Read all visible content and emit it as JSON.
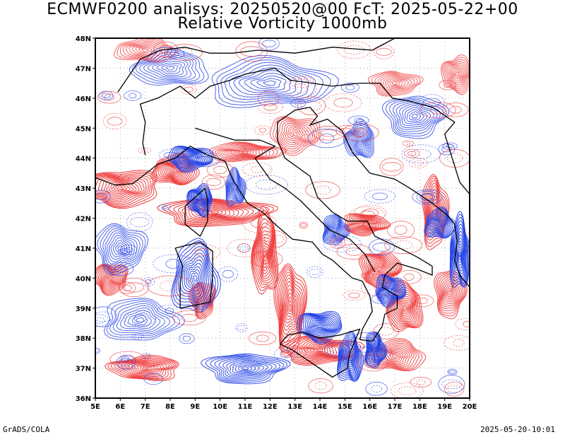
{
  "title_line1": "ECMWF0200 analisys: 20250520@00 FcT: 2025-05-22+00",
  "title_line2": "Relative Vorticity 1000mb",
  "footer_left": "GrADS/COLA",
  "footer_right": "2025-05-20-10:01",
  "map": {
    "lon_range": [
      5,
      20
    ],
    "lat_range": [
      36,
      48
    ],
    "lon_ticks": [
      "5E",
      "6E",
      "7E",
      "8E",
      "9E",
      "10E",
      "11E",
      "12E",
      "13E",
      "14E",
      "15E",
      "16E",
      "17E",
      "18E",
      "19E",
      "20E"
    ],
    "lat_ticks": [
      "36N",
      "37N",
      "38N",
      "39N",
      "40N",
      "41N",
      "42N",
      "43N",
      "44N",
      "45N",
      "46N",
      "47N",
      "48N"
    ],
    "colors": {
      "positive_vorticity": "#f03c3c",
      "negative_vorticity": "#2846e6",
      "coastline": "#000000",
      "grid": "#a0a0a0"
    },
    "field_features": [
      {
        "sign": "positive",
        "lon": 6.0,
        "lat": 43.0,
        "rx": 1.6,
        "ry": 0.6,
        "strength": 1.0
      },
      {
        "sign": "positive",
        "lon": 8.2,
        "lat": 43.6,
        "rx": 0.9,
        "ry": 0.5,
        "strength": 1.0
      },
      {
        "sign": "positive",
        "lon": 9.8,
        "lat": 42.2,
        "rx": 2.2,
        "ry": 0.45,
        "strength": 1.0
      },
      {
        "sign": "positive",
        "lon": 11.8,
        "lat": 40.8,
        "rx": 0.5,
        "ry": 1.4,
        "strength": 1.0
      },
      {
        "sign": "positive",
        "lon": 12.8,
        "lat": 39.0,
        "rx": 0.6,
        "ry": 1.5,
        "strength": 1.0
      },
      {
        "sign": "positive",
        "lon": 14.0,
        "lat": 37.6,
        "rx": 1.6,
        "ry": 0.45,
        "strength": 1.0
      },
      {
        "sign": "positive",
        "lon": 16.4,
        "lat": 40.3,
        "rx": 0.8,
        "ry": 0.6,
        "strength": 1.0
      },
      {
        "sign": "positive",
        "lon": 17.4,
        "lat": 39.0,
        "rx": 0.7,
        "ry": 0.8,
        "strength": 1.0
      },
      {
        "sign": "positive",
        "lon": 15.8,
        "lat": 41.8,
        "rx": 0.9,
        "ry": 0.35,
        "strength": 0.9
      },
      {
        "sign": "positive",
        "lon": 18.6,
        "lat": 42.2,
        "rx": 0.5,
        "ry": 1.2,
        "strength": 0.9
      },
      {
        "sign": "positive",
        "lon": 5.6,
        "lat": 40.0,
        "rx": 0.7,
        "ry": 0.5,
        "strength": 0.9
      },
      {
        "sign": "positive",
        "lon": 7.0,
        "lat": 37.0,
        "rx": 1.4,
        "ry": 0.4,
        "strength": 0.9
      },
      {
        "sign": "positive",
        "lon": 9.3,
        "lat": 39.3,
        "rx": 0.5,
        "ry": 0.6,
        "strength": 0.9
      },
      {
        "sign": "positive",
        "lon": 11.0,
        "lat": 44.2,
        "rx": 1.5,
        "ry": 0.3,
        "strength": 0.7
      },
      {
        "sign": "positive",
        "lon": 13.0,
        "lat": 44.8,
        "rx": 1.0,
        "ry": 0.6,
        "strength": 0.6
      },
      {
        "sign": "positive",
        "lon": 17.0,
        "lat": 37.4,
        "rx": 1.2,
        "ry": 0.5,
        "strength": 0.8
      },
      {
        "sign": "positive",
        "lon": 19.2,
        "lat": 39.5,
        "rx": 0.6,
        "ry": 0.8,
        "strength": 0.8
      },
      {
        "sign": "positive",
        "lon": 19.5,
        "lat": 46.8,
        "rx": 0.6,
        "ry": 0.6,
        "strength": 0.6
      },
      {
        "sign": "positive",
        "lon": 7.0,
        "lat": 47.6,
        "rx": 1.2,
        "ry": 0.4,
        "strength": 0.5
      },
      {
        "sign": "positive",
        "lon": 17.0,
        "lat": 46.5,
        "rx": 1.0,
        "ry": 0.4,
        "strength": 0.5
      },
      {
        "sign": "negative",
        "lon": 8.8,
        "lat": 44.0,
        "rx": 0.9,
        "ry": 0.4,
        "strength": 1.0
      },
      {
        "sign": "negative",
        "lon": 9.2,
        "lat": 42.6,
        "rx": 0.5,
        "ry": 0.5,
        "strength": 1.0
      },
      {
        "sign": "negative",
        "lon": 10.6,
        "lat": 43.0,
        "rx": 0.4,
        "ry": 0.6,
        "strength": 0.8
      },
      {
        "sign": "negative",
        "lon": 9.0,
        "lat": 40.0,
        "rx": 0.9,
        "ry": 1.2,
        "strength": 0.9
      },
      {
        "sign": "negative",
        "lon": 14.0,
        "lat": 38.4,
        "rx": 0.9,
        "ry": 0.5,
        "strength": 1.0
      },
      {
        "sign": "negative",
        "lon": 15.2,
        "lat": 37.3,
        "rx": 0.5,
        "ry": 0.8,
        "strength": 1.0
      },
      {
        "sign": "negative",
        "lon": 16.8,
        "lat": 39.6,
        "rx": 0.6,
        "ry": 0.5,
        "strength": 1.0
      },
      {
        "sign": "negative",
        "lon": 16.2,
        "lat": 37.6,
        "rx": 0.4,
        "ry": 0.6,
        "strength": 1.0
      },
      {
        "sign": "negative",
        "lon": 18.8,
        "lat": 41.8,
        "rx": 0.6,
        "ry": 0.5,
        "strength": 0.9
      },
      {
        "sign": "negative",
        "lon": 19.6,
        "lat": 40.8,
        "rx": 0.4,
        "ry": 1.2,
        "strength": 1.0
      },
      {
        "sign": "negative",
        "lon": 15.6,
        "lat": 44.6,
        "rx": 0.6,
        "ry": 0.6,
        "strength": 0.7
      },
      {
        "sign": "negative",
        "lon": 14.6,
        "lat": 41.6,
        "rx": 0.5,
        "ry": 0.5,
        "strength": 0.8
      },
      {
        "sign": "negative",
        "lon": 11.0,
        "lat": 37.0,
        "rx": 1.6,
        "ry": 0.5,
        "strength": 0.8
      },
      {
        "sign": "negative",
        "lon": 6.0,
        "lat": 41.0,
        "rx": 1.0,
        "ry": 0.8,
        "strength": 0.6
      },
      {
        "sign": "negative",
        "lon": 12.0,
        "lat": 46.5,
        "rx": 2.5,
        "ry": 0.8,
        "strength": 0.6
      },
      {
        "sign": "negative",
        "lon": 8.0,
        "lat": 47.0,
        "rx": 1.5,
        "ry": 0.6,
        "strength": 0.5
      },
      {
        "sign": "negative",
        "lon": 17.8,
        "lat": 45.4,
        "rx": 1.2,
        "ry": 0.7,
        "strength": 0.6
      },
      {
        "sign": "negative",
        "lon": 6.8,
        "lat": 38.6,
        "rx": 1.5,
        "ry": 0.7,
        "strength": 0.5
      }
    ]
  }
}
